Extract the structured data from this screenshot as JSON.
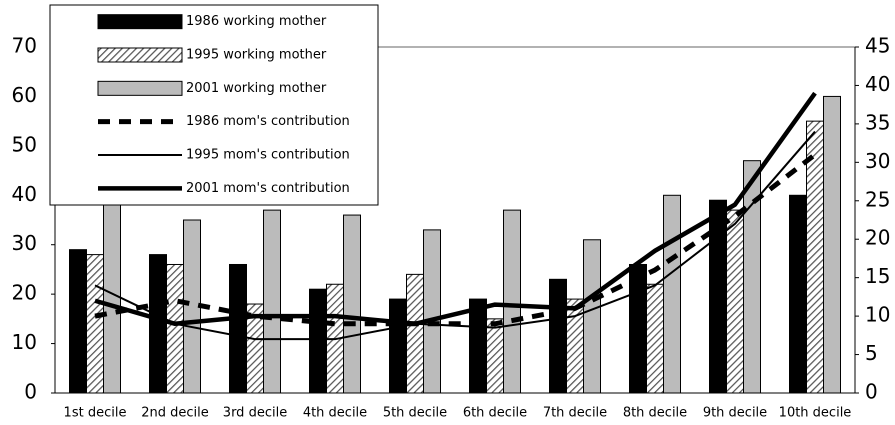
{
  "chart_data": {
    "type": "bar",
    "categories": [
      "1st decile",
      "2nd decile",
      "3rd decile",
      "4th decile",
      "5th decile",
      "6th decile",
      "7th decile",
      "8th decile",
      "9th decile",
      "10th decile"
    ],
    "series": [
      {
        "name": "1986 working mother",
        "kind": "bar",
        "color": "#000000",
        "values": [
          29,
          28,
          26,
          21,
          19,
          19,
          23,
          26,
          39,
          40
        ]
      },
      {
        "name": "1995 working mother",
        "kind": "bar",
        "color": "#555555",
        "pattern": "hatch",
        "values": [
          28,
          26,
          18,
          22,
          24,
          15,
          19,
          22,
          37,
          55
        ]
      },
      {
        "name": "2001 working mother",
        "kind": "bar",
        "color": "#bbbbbb",
        "values": [
          42,
          35,
          37,
          36,
          33,
          37,
          31,
          40,
          47,
          60
        ]
      },
      {
        "name": "1986 mom's contribution",
        "kind": "line",
        "axis": "y2",
        "color": "#000000",
        "dash": true,
        "line_width": 5,
        "values": [
          10,
          12,
          10,
          9,
          9,
          9,
          11,
          16,
          23,
          31
        ]
      },
      {
        "name": "1995 mom's contribution",
        "kind": "line",
        "axis": "y2",
        "color": "#000000",
        "line_width": 2,
        "values": [
          14,
          9,
          7,
          7,
          9,
          8.5,
          10,
          14,
          22,
          34
        ]
      },
      {
        "name": "2001 mom's contribution",
        "kind": "line",
        "axis": "y2",
        "color": "#000000",
        "line_width": 4.5,
        "values": [
          12,
          9,
          10,
          10,
          9,
          11.5,
          11,
          18.5,
          24.5,
          39
        ]
      }
    ],
    "ylim": [
      0,
      70
    ],
    "yticks": [
      0,
      10,
      20,
      30,
      40,
      50,
      60,
      70
    ],
    "y2lim": [
      0,
      45
    ],
    "y2ticks": [
      0,
      5,
      10,
      15,
      20,
      25,
      30,
      35,
      40,
      45
    ],
    "legend": "top-left"
  }
}
